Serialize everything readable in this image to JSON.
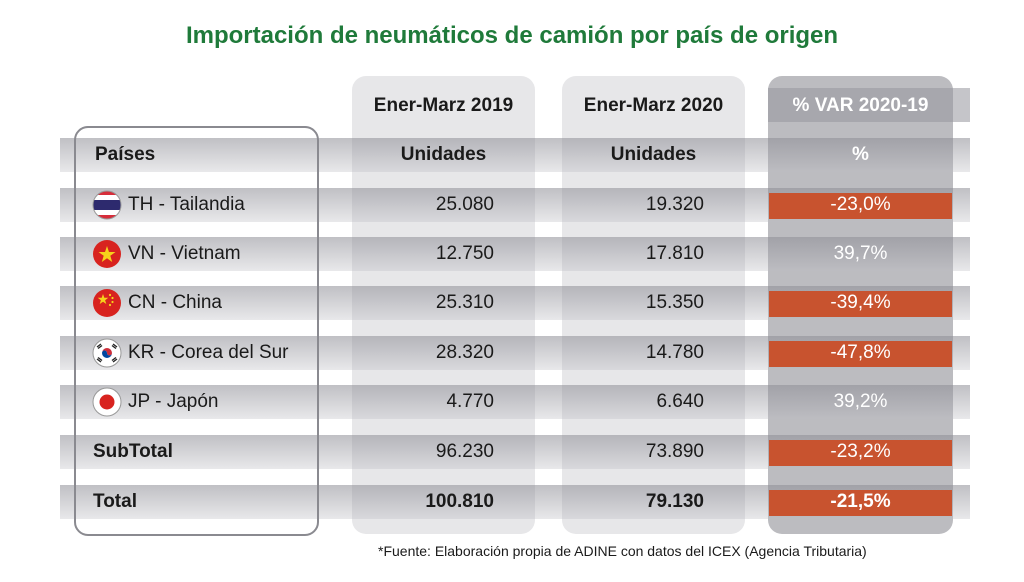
{
  "chart_data": {
    "type": "table",
    "title": "Importación de neumáticos de camión por país de origen",
    "periods": [
      "Ener-Marz 2019",
      "Ener-Marz 2020",
      "% VAR 2020-19"
    ],
    "columns": [
      "Países",
      "Unidades",
      "Unidades",
      "%"
    ],
    "rows": [
      {
        "country": "TH - Tailandia",
        "flag": "thailand-flag-icon",
        "v2019": "25.080",
        "v2020": "19.320",
        "var": "-23,0%",
        "negative": true
      },
      {
        "country": "VN - Vietnam",
        "flag": "vietnam-flag-icon",
        "v2019": "12.750",
        "v2020": "17.810",
        "var": "39,7%",
        "negative": false
      },
      {
        "country": "CN - China",
        "flag": "china-flag-icon",
        "v2019": "25.310",
        "v2020": "15.350",
        "var": "-39,4%",
        "negative": true
      },
      {
        "country": "KR - Corea del Sur",
        "flag": "south-korea-flag-icon",
        "v2019": "28.320",
        "v2020": "14.780",
        "var": "-47,8%",
        "negative": true
      },
      {
        "country": "JP - Japón",
        "flag": "japan-flag-icon",
        "v2019": "4.770",
        "v2020": "6.640",
        "var": "39,2%",
        "negative": false
      }
    ],
    "subtotal": {
      "label": "SubTotal",
      "v2019": "96.230",
      "v2020": "73.890",
      "var": "-23,2%",
      "negative": true
    },
    "total": {
      "label": "Total",
      "v2019": "100.810",
      "v2020": "79.130",
      "var": "-21,5%",
      "negative": true
    }
  },
  "footnote": "*Fuente: Elaboración propia de ADINE con datos del ICEX (Agencia Tributaria)",
  "colors": {
    "title": "#1f7a3a",
    "negative": "#c8532f",
    "accent_panel": "#bcbcc0"
  }
}
